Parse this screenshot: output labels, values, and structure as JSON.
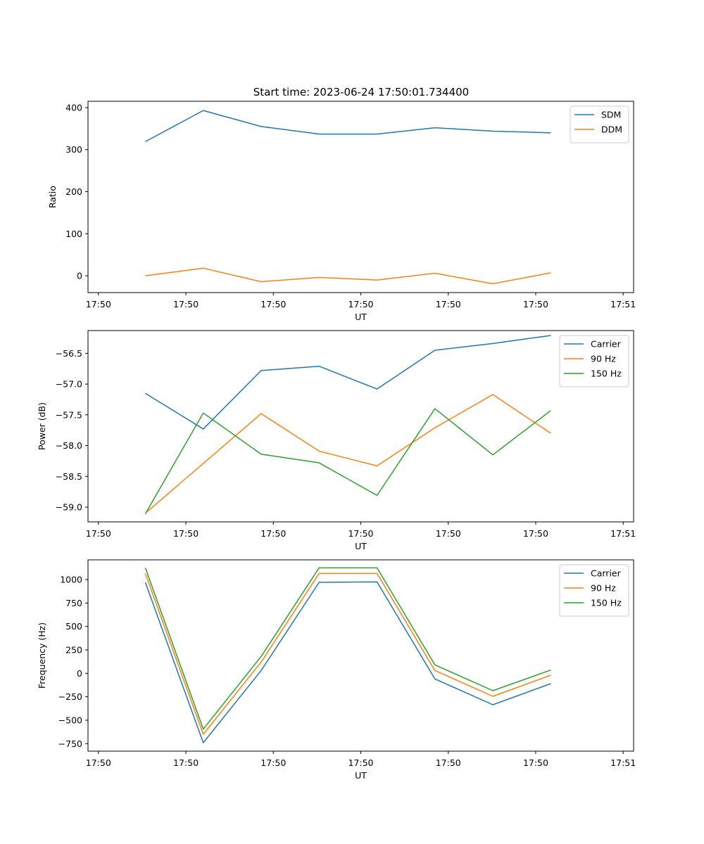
{
  "figure_title": "Start time: 2023-06-24 17:50:01.734400",
  "chart_data": [
    {
      "type": "line",
      "ylabel": "Ratio",
      "xlabel": "UT",
      "x_tick_labels": [
        "17:50",
        "17:50",
        "17:50",
        "17:50",
        "17:50",
        "17:50",
        "17:51"
      ],
      "y_ticks": [
        0,
        100,
        200,
        300,
        400
      ],
      "ylim": [
        -40,
        415
      ],
      "legend_position": "top-right",
      "series": [
        {
          "name": "SDM",
          "color": "#1f77b4",
          "values": [
            319,
            393,
            355,
            337,
            337,
            352,
            344,
            340
          ]
        },
        {
          "name": "DDM",
          "color": "#ff7f0e",
          "values": [
            0,
            18,
            -14,
            -4,
            -10,
            6,
            -19,
            7
          ]
        }
      ]
    },
    {
      "type": "line",
      "ylabel": "Power (dB)",
      "xlabel": "UT",
      "x_tick_labels": [
        "17:50",
        "17:50",
        "17:50",
        "17:50",
        "17:50",
        "17:50",
        "17:51"
      ],
      "y_ticks": [
        -59.0,
        -58.5,
        -58.0,
        -57.5,
        -57.0,
        -56.5
      ],
      "ylim": [
        -59.24,
        -56.13
      ],
      "legend_position": "top-right",
      "series": [
        {
          "name": "Carrier",
          "color": "#1f77b4",
          "values": [
            -57.15,
            -57.73,
            -56.78,
            -56.71,
            -57.08,
            -56.45,
            -56.34,
            -56.21
          ]
        },
        {
          "name": "90 Hz",
          "color": "#ff7f0e",
          "values": [
            -59.1,
            -58.29,
            -57.48,
            -58.09,
            -58.33,
            -57.71,
            -57.17,
            -57.8
          ]
        },
        {
          "name": "150 Hz",
          "color": "#2ca02c",
          "values": [
            -59.11,
            -57.47,
            -58.14,
            -58.28,
            -58.81,
            -57.4,
            -58.15,
            -57.43
          ]
        }
      ]
    },
    {
      "type": "line",
      "ylabel": "Frequency (Hz)",
      "xlabel": "UT",
      "x_tick_labels": [
        "17:50",
        "17:50",
        "17:50",
        "17:50",
        "17:50",
        "17:50",
        "17:51"
      ],
      "y_ticks": [
        -750,
        -500,
        -250,
        0,
        250,
        500,
        750,
        1000
      ],
      "ylim": [
        -830,
        1210
      ],
      "legend_position": "top-right",
      "series": [
        {
          "name": "Carrier",
          "color": "#1f77b4",
          "values": [
            970,
            -740,
            30,
            970,
            975,
            -60,
            -335,
            -110
          ]
        },
        {
          "name": "90 Hz",
          "color": "#ff7f0e",
          "values": [
            1065,
            -650,
            120,
            1065,
            1065,
            30,
            -245,
            -20
          ]
        },
        {
          "name": "150 Hz",
          "color": "#2ca02c",
          "values": [
            1125,
            -595,
            180,
            1125,
            1125,
            90,
            -185,
            35
          ]
        }
      ]
    }
  ]
}
